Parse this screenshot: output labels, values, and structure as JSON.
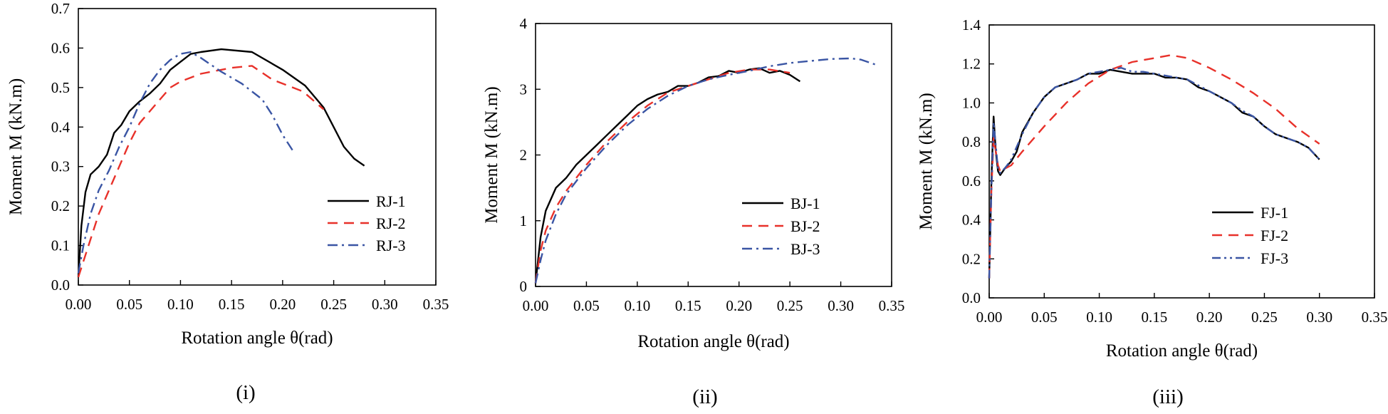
{
  "chart_data": [
    {
      "type": "line",
      "caption": "(i)",
      "xlabel": "Rotation angle θ(rad)",
      "ylabel": "Moment M (kN.m)",
      "xlim": [
        0,
        0.35
      ],
      "ylim": [
        0,
        0.7
      ],
      "xticks": [
        "0.00",
        "0.05",
        "0.10",
        "0.15",
        "0.20",
        "0.25",
        "0.30",
        "0.35"
      ],
      "yticks": [
        "0.0",
        "0.1",
        "0.2",
        "0.3",
        "0.4",
        "0.5",
        "0.6",
        "0.7"
      ],
      "legend_position": "bottom-right",
      "series": [
        {
          "name": "RJ-1",
          "color": "#000000",
          "dash": "solid",
          "x": [
            0.0,
            0.003,
            0.007,
            0.012,
            0.02,
            0.028,
            0.035,
            0.042,
            0.05,
            0.06,
            0.07,
            0.08,
            0.09,
            0.1,
            0.11,
            0.12,
            0.14,
            0.17,
            0.2,
            0.222,
            0.24,
            0.26,
            0.27,
            0.28
          ],
          "y": [
            0.02,
            0.15,
            0.235,
            0.28,
            0.3,
            0.33,
            0.385,
            0.405,
            0.44,
            0.465,
            0.485,
            0.51,
            0.545,
            0.565,
            0.585,
            0.59,
            0.597,
            0.59,
            0.545,
            0.505,
            0.45,
            0.35,
            0.32,
            0.302
          ]
        },
        {
          "name": "RJ-2",
          "color": "#e8312a",
          "dash": "long",
          "x": [
            0.0,
            0.01,
            0.02,
            0.03,
            0.04,
            0.05,
            0.06,
            0.07,
            0.08,
            0.09,
            0.1,
            0.12,
            0.14,
            0.15,
            0.17,
            0.19,
            0.22,
            0.24
          ],
          "y": [
            0.02,
            0.1,
            0.18,
            0.24,
            0.3,
            0.36,
            0.41,
            0.44,
            0.47,
            0.5,
            0.515,
            0.535,
            0.545,
            0.55,
            0.555,
            0.52,
            0.49,
            0.445
          ]
        },
        {
          "name": "RJ-3",
          "color": "#3a55a4",
          "dash": "dashdot",
          "x": [
            0.0,
            0.005,
            0.012,
            0.02,
            0.03,
            0.04,
            0.05,
            0.06,
            0.07,
            0.08,
            0.09,
            0.1,
            0.11,
            0.12,
            0.14,
            0.16,
            0.18,
            0.19,
            0.2,
            0.21
          ],
          "y": [
            0.03,
            0.1,
            0.18,
            0.24,
            0.29,
            0.35,
            0.4,
            0.46,
            0.51,
            0.545,
            0.57,
            0.585,
            0.59,
            0.575,
            0.54,
            0.51,
            0.47,
            0.43,
            0.38,
            0.34
          ]
        }
      ]
    },
    {
      "type": "line",
      "caption": "(ii)",
      "xlabel": "Rotation angle θ(rad)",
      "ylabel": "Moment M (kN.m)",
      "xlim": [
        0,
        0.35
      ],
      "ylim": [
        0,
        4
      ],
      "xticks": [
        "0.00",
        "0.05",
        "0.10",
        "0.15",
        "0.20",
        "0.25",
        "0.30",
        "0.35"
      ],
      "yticks": [
        "0",
        "1",
        "2",
        "3",
        "4"
      ],
      "legend_position": "bottom-right",
      "series": [
        {
          "name": "BJ-1",
          "color": "#000000",
          "dash": "solid",
          "x": [
            0.0,
            0.005,
            0.01,
            0.02,
            0.03,
            0.04,
            0.05,
            0.06,
            0.07,
            0.08,
            0.09,
            0.1,
            0.11,
            0.12,
            0.13,
            0.14,
            0.15,
            0.16,
            0.17,
            0.18,
            0.19,
            0.2,
            0.21,
            0.22,
            0.23,
            0.24,
            0.25,
            0.26
          ],
          "y": [
            0.05,
            0.75,
            1.15,
            1.5,
            1.65,
            1.85,
            2.0,
            2.15,
            2.3,
            2.45,
            2.6,
            2.75,
            2.85,
            2.92,
            2.96,
            3.05,
            3.05,
            3.1,
            3.18,
            3.2,
            3.28,
            3.25,
            3.3,
            3.32,
            3.25,
            3.28,
            3.22,
            3.12
          ]
        },
        {
          "name": "BJ-2",
          "color": "#e8312a",
          "dash": "long",
          "x": [
            0.0,
            0.005,
            0.01,
            0.02,
            0.03,
            0.05,
            0.07,
            0.09,
            0.11,
            0.13,
            0.15,
            0.17,
            0.19,
            0.21,
            0.23,
            0.25
          ],
          "y": [
            0.05,
            0.55,
            0.85,
            1.2,
            1.45,
            1.85,
            2.2,
            2.5,
            2.75,
            2.95,
            3.05,
            3.15,
            3.25,
            3.3,
            3.3,
            3.25
          ]
        },
        {
          "name": "BJ-3",
          "color": "#3a55a4",
          "dash": "dashdot",
          "x": [
            0.0,
            0.005,
            0.01,
            0.02,
            0.03,
            0.05,
            0.07,
            0.09,
            0.11,
            0.13,
            0.15,
            0.17,
            0.19,
            0.21,
            0.23,
            0.25,
            0.27,
            0.29,
            0.31,
            0.32,
            0.335
          ],
          "y": [
            0.05,
            0.4,
            0.7,
            1.1,
            1.4,
            1.8,
            2.15,
            2.45,
            2.7,
            2.9,
            3.05,
            3.15,
            3.22,
            3.28,
            3.35,
            3.4,
            3.43,
            3.46,
            3.47,
            3.45,
            3.37
          ]
        }
      ]
    },
    {
      "type": "line",
      "caption": "(iii)",
      "xlabel": "Rotation angle θ(rad)",
      "ylabel": "Moment M (kN.m)",
      "xlim": [
        0,
        0.35
      ],
      "ylim": [
        0,
        1.4
      ],
      "xticks": [
        "0.00",
        "0.05",
        "0.10",
        "0.15",
        "0.20",
        "0.25",
        "0.30",
        "0.35"
      ],
      "yticks": [
        "0.0",
        "0.2",
        "0.4",
        "0.6",
        "0.8",
        "1.0",
        "1.2",
        "1.4"
      ],
      "legend_position": "bottom-left",
      "series": [
        {
          "name": "FJ-1",
          "color": "#000000",
          "dash": "solid",
          "x": [
            0.0,
            0.002,
            0.004,
            0.006,
            0.008,
            0.01,
            0.015,
            0.02,
            0.025,
            0.03,
            0.04,
            0.05,
            0.06,
            0.07,
            0.08,
            0.09,
            0.1,
            0.11,
            0.12,
            0.13,
            0.14,
            0.15,
            0.16,
            0.17,
            0.18,
            0.19,
            0.2,
            0.21,
            0.22,
            0.23,
            0.24,
            0.25,
            0.26,
            0.27,
            0.28,
            0.29,
            0.3
          ],
          "y": [
            0.1,
            0.6,
            0.93,
            0.75,
            0.65,
            0.63,
            0.67,
            0.7,
            0.75,
            0.85,
            0.95,
            1.03,
            1.08,
            1.1,
            1.12,
            1.15,
            1.15,
            1.17,
            1.16,
            1.15,
            1.15,
            1.15,
            1.13,
            1.13,
            1.12,
            1.08,
            1.06,
            1.03,
            1.0,
            0.95,
            0.93,
            0.88,
            0.84,
            0.82,
            0.8,
            0.77,
            0.71
          ]
        },
        {
          "name": "FJ-2",
          "color": "#e8312a",
          "dash": "long",
          "x": [
            0.0,
            0.002,
            0.004,
            0.006,
            0.008,
            0.01,
            0.02,
            0.03,
            0.05,
            0.07,
            0.09,
            0.11,
            0.13,
            0.15,
            0.165,
            0.18,
            0.2,
            0.22,
            0.24,
            0.26,
            0.28,
            0.3
          ],
          "y": [
            0.1,
            0.55,
            0.82,
            0.75,
            0.68,
            0.65,
            0.68,
            0.75,
            0.88,
            1.0,
            1.1,
            1.17,
            1.21,
            1.23,
            1.245,
            1.23,
            1.18,
            1.12,
            1.05,
            0.97,
            0.87,
            0.79
          ]
        },
        {
          "name": "FJ-3",
          "color": "#3a55a4",
          "dash": "dashdotdot",
          "x": [
            0.0,
            0.002,
            0.004,
            0.006,
            0.008,
            0.01,
            0.015,
            0.02,
            0.03,
            0.04,
            0.05,
            0.06,
            0.07,
            0.08,
            0.09,
            0.1,
            0.11,
            0.12,
            0.13,
            0.14,
            0.15,
            0.16,
            0.17,
            0.18,
            0.19,
            0.2,
            0.21,
            0.22,
            0.23,
            0.24,
            0.25,
            0.26,
            0.27,
            0.28,
            0.29,
            0.3
          ],
          "y": [
            0.1,
            0.55,
            0.9,
            0.78,
            0.66,
            0.64,
            0.67,
            0.71,
            0.84,
            0.95,
            1.03,
            1.08,
            1.1,
            1.12,
            1.15,
            1.16,
            1.17,
            1.18,
            1.16,
            1.16,
            1.15,
            1.14,
            1.13,
            1.12,
            1.09,
            1.06,
            1.03,
            1.0,
            0.96,
            0.93,
            0.88,
            0.84,
            0.82,
            0.8,
            0.77,
            0.71
          ]
        }
      ]
    }
  ]
}
